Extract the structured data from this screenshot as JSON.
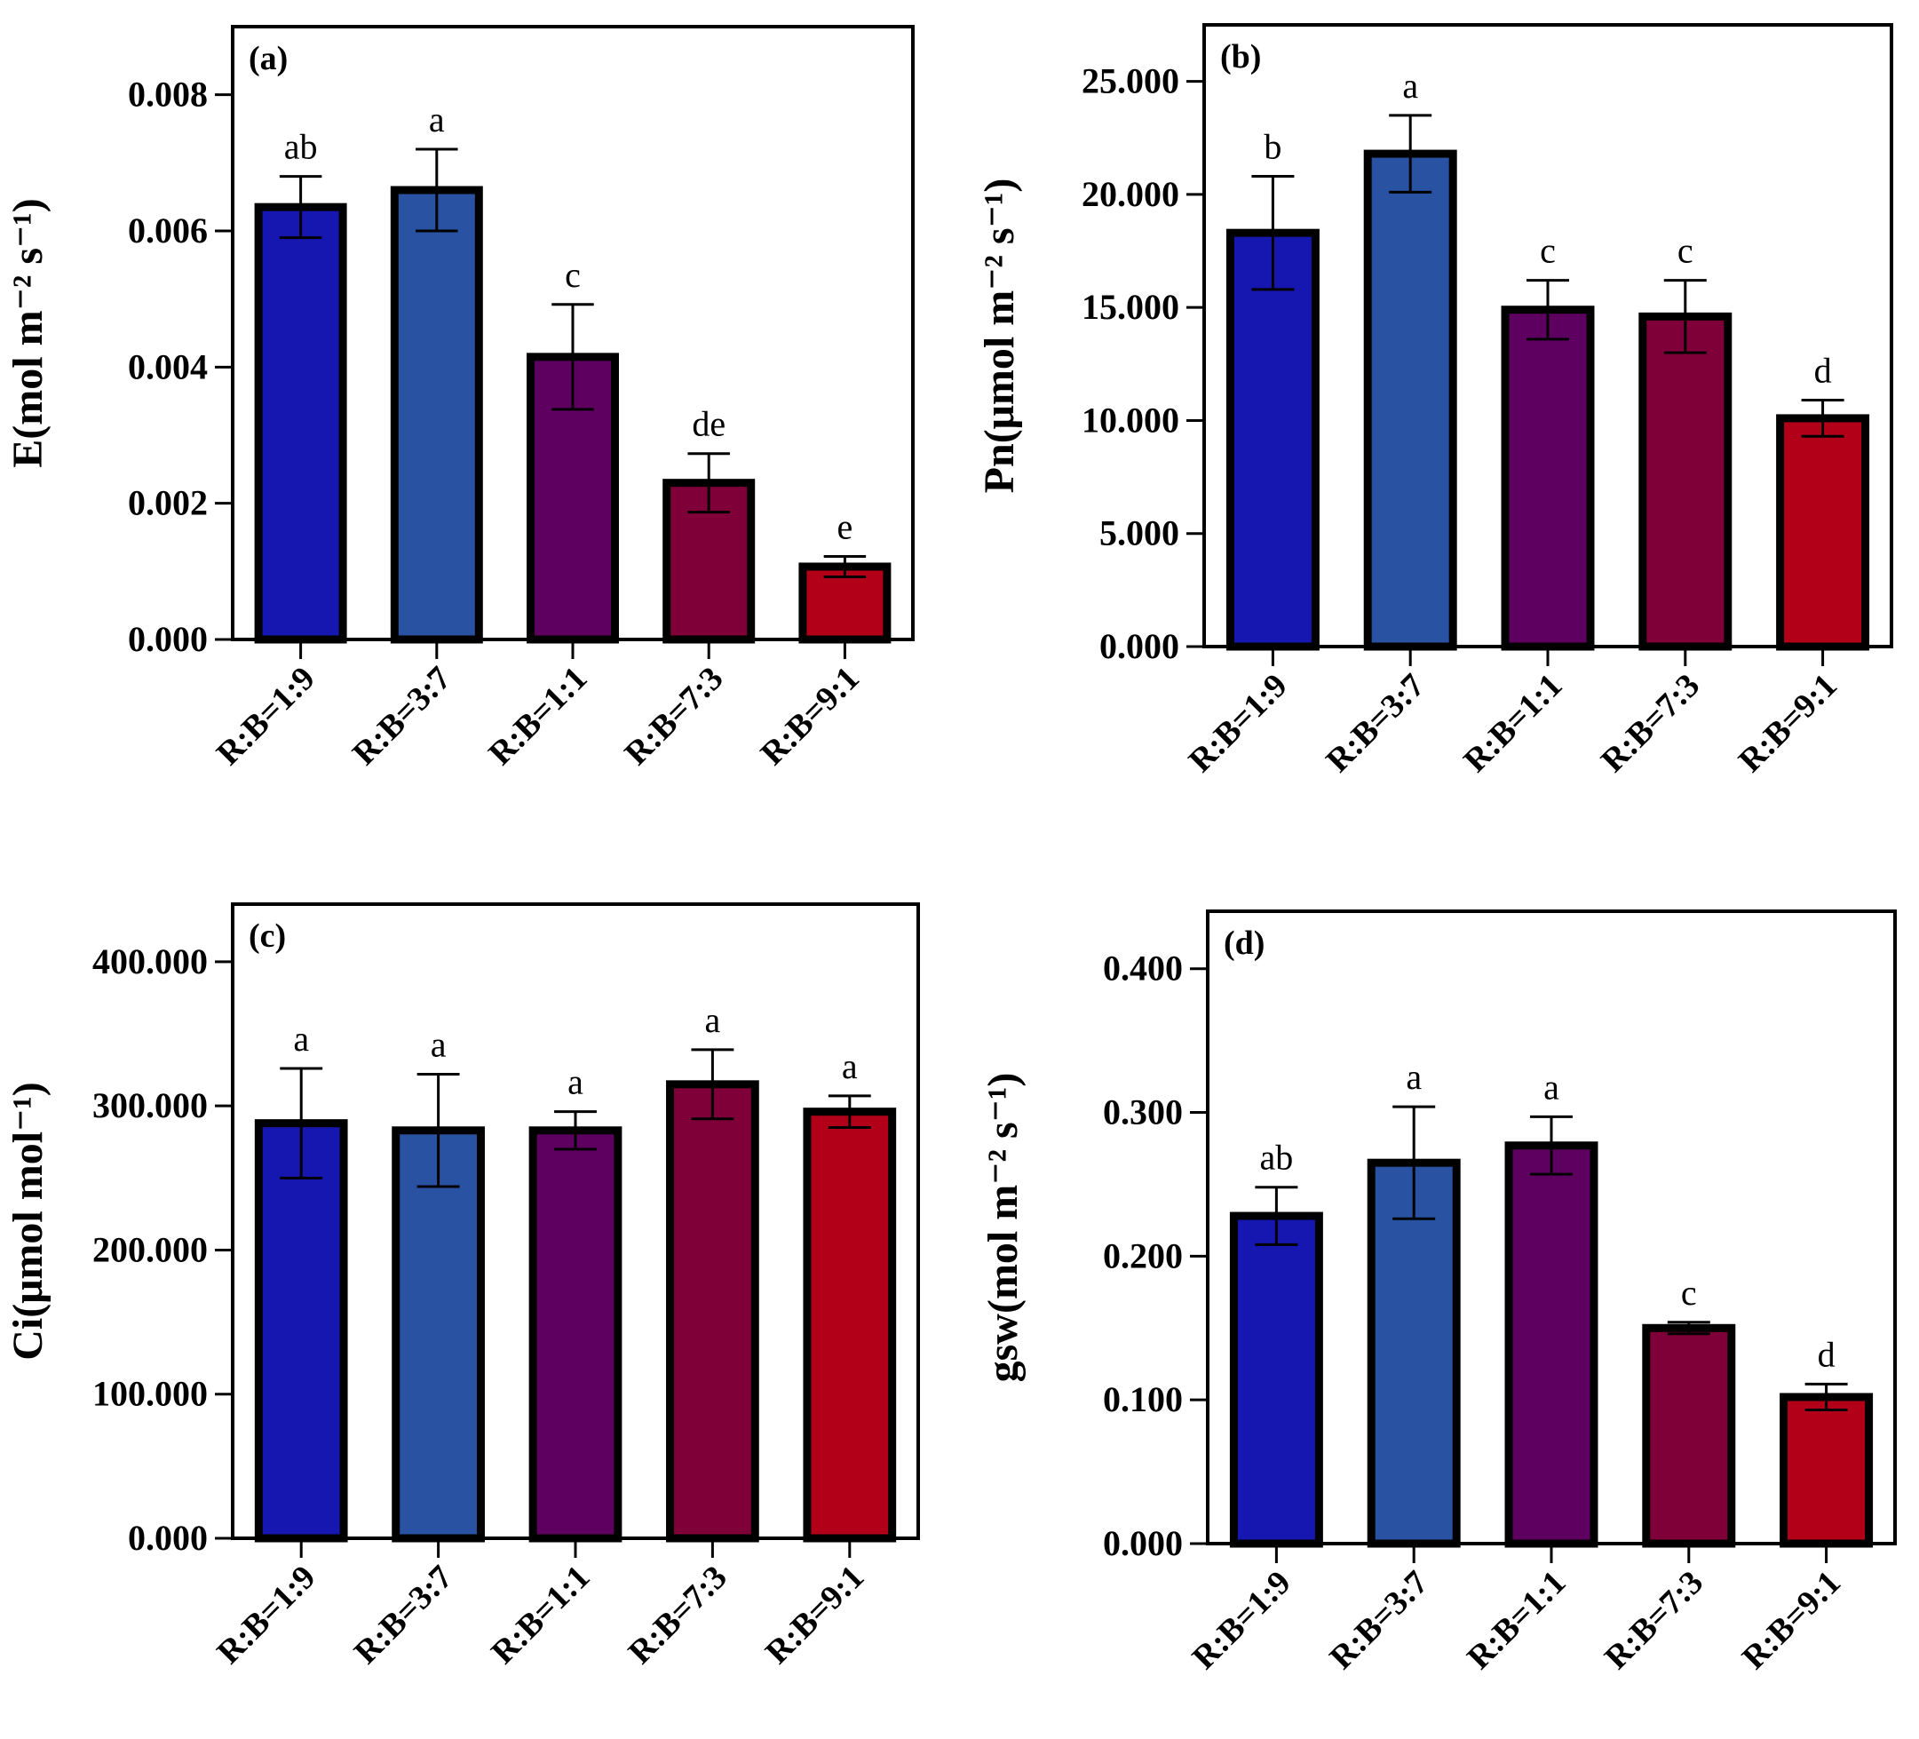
{
  "figure": {
    "categories": [
      "R:B=1:9",
      "R:B=3:7",
      "R:B=1:1",
      "R:B=7:3",
      "R:B=9:1"
    ],
    "bar_colors": [
      "#1617b0",
      "#2a52a2",
      "#5e0060",
      "#7f0038",
      "#b20018"
    ],
    "bar_outline_color": "#000000"
  },
  "chart_data": [
    {
      "type": "bar",
      "panel_label": "(a)",
      "ylabel": "E(mol m⁻² s⁻¹)",
      "ylim": [
        0,
        0.009
      ],
      "yticks": [
        0,
        0.002,
        0.004,
        0.006,
        0.008
      ],
      "ytick_labels": [
        "0.000",
        "0.002",
        "0.004",
        "0.006",
        "0.008"
      ],
      "categories": [
        "R:B=1:9",
        "R:B=3:7",
        "R:B=1:1",
        "R:B=7:3",
        "R:B=9:1"
      ],
      "values": [
        0.00635,
        0.0066,
        0.00415,
        0.0023,
        0.00107
      ],
      "errors": [
        0.00045,
        0.0006,
        0.00077,
        0.00043,
        0.00015
      ],
      "significance": [
        "ab",
        "a",
        "c",
        "de",
        "e"
      ]
    },
    {
      "type": "bar",
      "panel_label": "(b)",
      "ylabel": "Pn(μmol m⁻² s⁻¹)",
      "ylim": [
        0,
        27.5
      ],
      "yticks": [
        0,
        5,
        10,
        15,
        20,
        25
      ],
      "ytick_labels": [
        "0.000",
        "5.000",
        "10.000",
        "15.000",
        "20.000",
        "25.000"
      ],
      "categories": [
        "R:B=1:9",
        "R:B=3:7",
        "R:B=1:1",
        "R:B=7:3",
        "R:B=9:1"
      ],
      "values": [
        18.3,
        21.8,
        14.9,
        14.6,
        10.1
      ],
      "errors": [
        2.5,
        1.7,
        1.3,
        1.6,
        0.8
      ],
      "significance": [
        "b",
        "a",
        "c",
        "c",
        "d"
      ]
    },
    {
      "type": "bar",
      "panel_label": "(c)",
      "ylabel": "Ci(μmol mol⁻¹)",
      "ylim": [
        0,
        440
      ],
      "yticks": [
        0,
        100,
        200,
        300,
        400
      ],
      "ytick_labels": [
        "0.000",
        "100.000",
        "200.000",
        "300.000",
        "400.000"
      ],
      "categories": [
        "R:B=1:9",
        "R:B=3:7",
        "R:B=1:1",
        "R:B=7:3",
        "R:B=9:1"
      ],
      "values": [
        288,
        283,
        283,
        315,
        296
      ],
      "errors": [
        38,
        39,
        13,
        24,
        11
      ],
      "significance": [
        "a",
        "a",
        "a",
        "a",
        "a"
      ]
    },
    {
      "type": "bar",
      "panel_label": "(d)",
      "ylabel": "gsw(mol m⁻² s⁻¹)",
      "ylim": [
        0,
        0.44
      ],
      "yticks": [
        0,
        0.1,
        0.2,
        0.3,
        0.4
      ],
      "ytick_labels": [
        "0.000",
        "0.100",
        "0.200",
        "0.300",
        "0.400"
      ],
      "categories": [
        "R:B=1:9",
        "R:B=3:7",
        "R:B=1:1",
        "R:B=7:3",
        "R:B=9:1"
      ],
      "values": [
        0.228,
        0.265,
        0.277,
        0.15,
        0.102
      ],
      "errors": [
        0.02,
        0.039,
        0.02,
        0.004,
        0.009
      ],
      "significance": [
        "ab",
        "a",
        "a",
        "c",
        "d"
      ]
    }
  ]
}
